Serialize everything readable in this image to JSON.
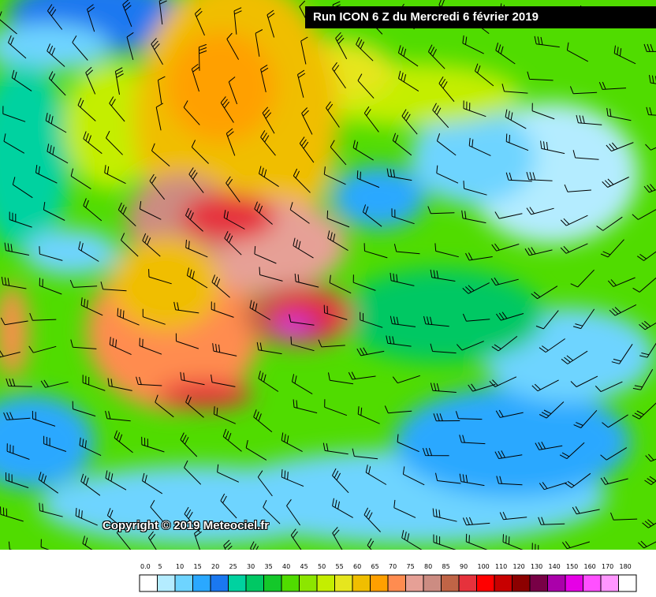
{
  "header": {
    "title": "Run ICON 6 Z du Mercredi 6 février 2019"
  },
  "map": {
    "copyright": "Copyright © 2019 Meteociel.fr"
  },
  "legend": {
    "labels": [
      "0.0",
      "5",
      "10",
      "15",
      "20",
      "25",
      "30",
      "35",
      "40",
      "45",
      "50",
      "55",
      "60",
      "65",
      "70",
      "75",
      "80",
      "85",
      "90",
      "100",
      "110",
      "120",
      "130",
      "140",
      "150",
      "160",
      "170",
      "180"
    ],
    "colors": [
      "#ffffff",
      "#b4ecff",
      "#6ed4ff",
      "#2aa8ff",
      "#1a78f0",
      "#00d2a0",
      "#00c864",
      "#14c82a",
      "#50dc00",
      "#8ce600",
      "#c4ee00",
      "#e6e61e",
      "#f0be00",
      "#ffa000",
      "#ff8c50",
      "#e6a096",
      "#cc8c82",
      "#c06446",
      "#e6323c",
      "#ff0000",
      "#c80000",
      "#8c0000",
      "#780046",
      "#aa00aa",
      "#e600e6",
      "#ff50ff",
      "#ff96ff",
      "#ffffff"
    ]
  }
}
